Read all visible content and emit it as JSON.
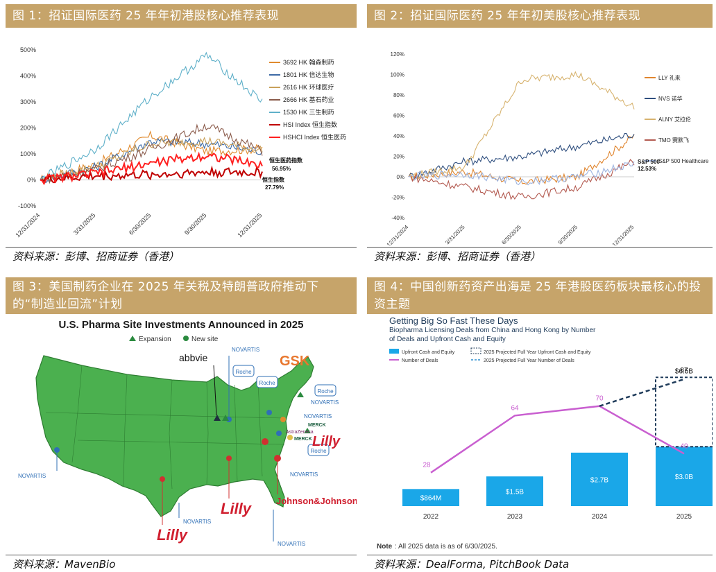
{
  "fig1": {
    "title": "图 1：招证国际医药 25 年年初港股核心推荐表现",
    "source": "资料来源：彭博、招商证券（香港）",
    "chart_data": {
      "type": "line",
      "x": [
        "12/31/2024",
        "3/31/2025",
        "6/30/2025",
        "9/30/2025",
        "12/31/2025"
      ],
      "ylim": [
        -100,
        500
      ],
      "yticks": [
        "500%",
        "400%",
        "300%",
        "200%",
        "100%",
        "0%",
        "-100%"
      ],
      "series": [
        {
          "name": "3692 HK 翰森制药",
          "color": "#e08a2e",
          "values": [
            0,
            60,
            170,
            110,
            120
          ]
        },
        {
          "name": "1801 HK 信达生物",
          "color": "#3d6aa6",
          "values": [
            0,
            50,
            150,
            140,
            110
          ]
        },
        {
          "name": "2616 HK 环球医疗",
          "color": "#c9a15a",
          "values": [
            0,
            50,
            140,
            150,
            115
          ]
        },
        {
          "name": "2666 HK 基石药业",
          "color": "#8a5a4a",
          "values": [
            0,
            40,
            120,
            210,
            110
          ]
        },
        {
          "name": "1530 HK 三生制药",
          "color": "#5fb0c9",
          "values": [
            0,
            120,
            320,
            480,
            300
          ]
        },
        {
          "name": "HSI Index 恒生指数",
          "color": "#c00000",
          "values": [
            0,
            15,
            20,
            30,
            28
          ]
        },
        {
          "name": "HSHCI Index 恒生医药",
          "color": "#ff2020",
          "values": [
            0,
            25,
            65,
            95,
            57
          ]
        }
      ],
      "annotations": [
        {
          "text": "恒生医药指数",
          "value": "56.95%"
        },
        {
          "text": "恒生指数",
          "value": "27.79%"
        }
      ]
    }
  },
  "fig2": {
    "title": "图 2：招证国际医药 25 年年初美股核心推荐表现",
    "source": "资料来源：彭博、招商证券（香港）",
    "chart_data": {
      "type": "line",
      "x": [
        "12/31/2024",
        "3/31/2025",
        "6/30/2025",
        "9/30/2025",
        "12/31/2025"
      ],
      "ylim": [
        -40,
        120
      ],
      "yticks": [
        "120%",
        "100%",
        "80%",
        "60%",
        "40%",
        "20%",
        "0%",
        "-20%",
        "-40%"
      ],
      "series": [
        {
          "name": "LLY 礼来",
          "color": "#e0852e",
          "values": [
            0,
            5,
            -5,
            0,
            40
          ]
        },
        {
          "name": "NVS 诺华",
          "color": "#2f4f7f",
          "values": [
            0,
            15,
            20,
            30,
            42
          ]
        },
        {
          "name": "ALNY 艾拉伦",
          "color": "#d7b36f",
          "values": [
            0,
            10,
            95,
            100,
            68
          ]
        },
        {
          "name": "TMO 赛默飞",
          "color": "#b35a50",
          "values": [
            0,
            -10,
            -20,
            -10,
            15
          ]
        },
        {
          "name": "S&P 500 Healthcare",
          "color": "#9db4e0",
          "values": [
            0,
            3,
            -5,
            0,
            12.53
          ]
        }
      ],
      "annotations": [
        {
          "text": "S&P 500",
          "value": "12.53%"
        }
      ]
    }
  },
  "fig3": {
    "title": "图 3：美国制药企业在 2025 年关税及特朗普政府推动下的“制造业回流”计划",
    "source": "资料来源：MavenBio",
    "map_title": "U.S. Pharma Site Investments Announced in 2025",
    "legend_expansion": "Expansion",
    "legend_new": "New site",
    "colors": {
      "land": "#4bb04f",
      "expansion": "#2a8a3e",
      "new_site": "#2f6fb6",
      "pin_red": "#d03030"
    },
    "labels": {
      "abbvie": "abbvie",
      "gsk": "GSK",
      "roche": "Roche",
      "novartis": "NOVARTIS",
      "merck": "MERCK",
      "astrazeneca": "AstraZeneca",
      "lilly": "Lilly",
      "jnj": "Johnson&Johnson"
    }
  },
  "fig4": {
    "title": "图 4：中国创新药资产出海是 25 年港股医药板块最核心的投资主题",
    "source": "资料来源：DealForma, PitchBook Data",
    "chart_data": {
      "type": "bar",
      "title": "Getting Big So Fast These Days",
      "subtitle": "Biopharma Licensing Deals from China and Hong Kong by Number of Deals and Upfront Cash and Equity",
      "categories": [
        "2022",
        "2023",
        "2024",
        "2025"
      ],
      "series": [
        {
          "name": "Upfront Cash and Equity",
          "values": [
            0.864,
            1.5,
            2.7,
            3.0
          ],
          "labels": [
            "$864M",
            "$1.5B",
            "$2.7B",
            "$3.0B"
          ],
          "color": "#1aa7e8"
        },
        {
          "name": "Number of Deals",
          "values": [
            28,
            64,
            70,
            40
          ],
          "color": "#c95fd0"
        }
      ],
      "projections": {
        "upfront_label": "2025 Projected Full Year Upfront Cash and Equity",
        "upfront_value": "$6.5B",
        "deals_label": "2025 Projected Full Year Number of Deals",
        "deals_value": 87
      },
      "note_bold": "Note",
      "note": ": All 2025 data is as of 6/30/2025."
    }
  }
}
